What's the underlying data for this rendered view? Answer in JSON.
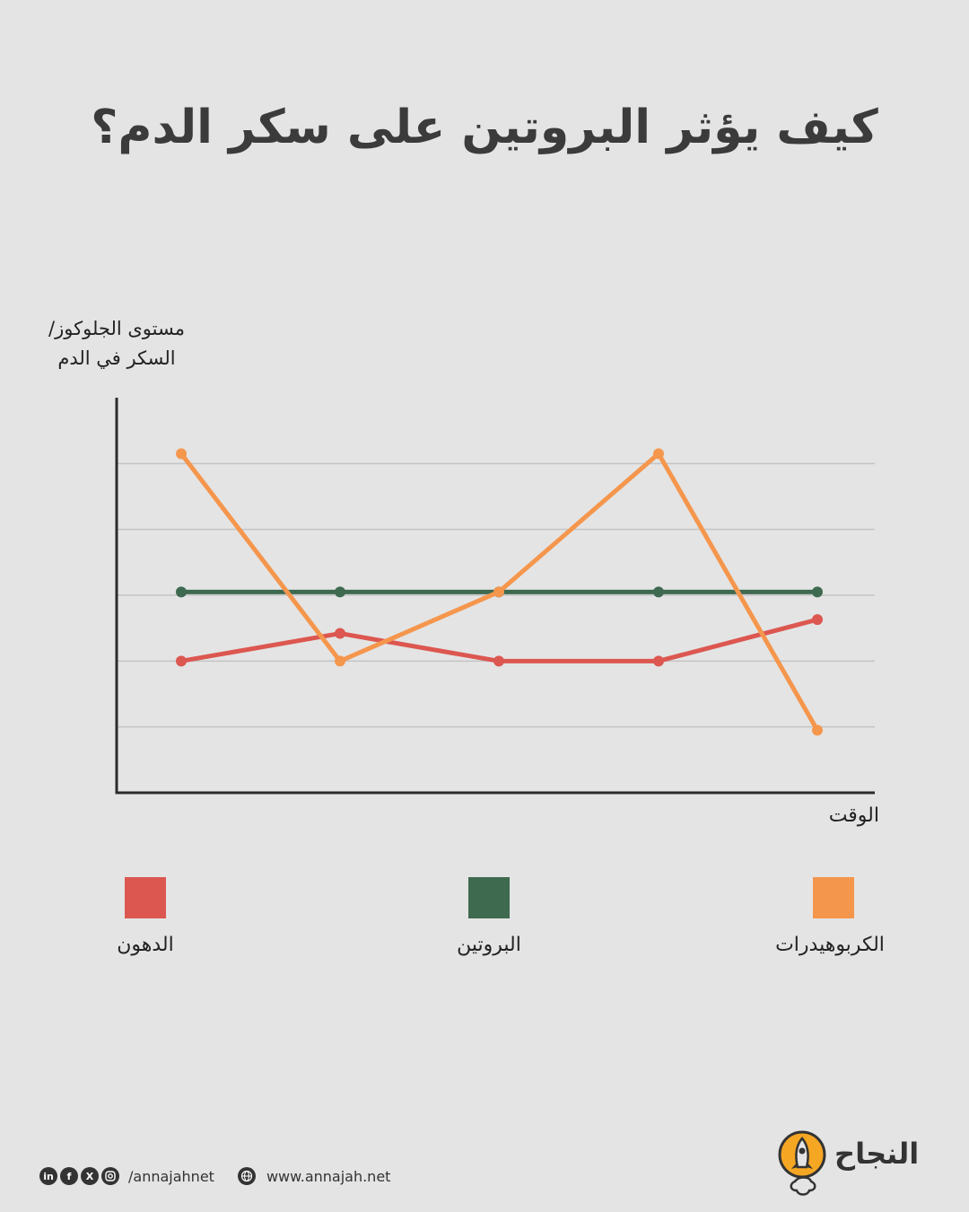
{
  "header": {
    "title": "كيف يؤثر البروتين على سكر الدم؟"
  },
  "chart_data": {
    "type": "line",
    "title": "كيف يؤثر البروتين على سكر الدم؟",
    "ylabel_lines": [
      "مستوى الجلوكوز/",
      "السكر في الدم"
    ],
    "xlabel": "الوقت",
    "ylim": [
      0,
      6
    ],
    "grid": true,
    "gridlines": [
      1,
      2,
      3,
      4,
      5
    ],
    "legend_position": "bottom",
    "x": [
      1,
      2,
      3,
      4,
      5
    ],
    "series": [
      {
        "name": "الكربوهيدرات",
        "color": "#f5964d",
        "values": [
          5.15,
          2.0,
          3.05,
          5.15,
          0.95
        ]
      },
      {
        "name": "البروتين",
        "color": "#3e6a50",
        "values": [
          3.05,
          3.05,
          3.05,
          3.05,
          3.05
        ]
      },
      {
        "name": "الدهون",
        "color": "#dc5750",
        "values": [
          2.0,
          2.42,
          2.0,
          2.0,
          2.63
        ]
      }
    ]
  },
  "legend": {
    "fats": {
      "label": "الدهون",
      "color": "#dc5750"
    },
    "protein": {
      "label": "البروتين",
      "color": "#3e6a50"
    },
    "carbs": {
      "label": "الكربوهيدرات",
      "color": "#f5964d"
    }
  },
  "footer": {
    "social_icons": [
      "linkedin-icon",
      "facebook-icon",
      "x-icon",
      "instagram-icon"
    ],
    "handle": "/annajahnet",
    "website_icon": "globe-icon",
    "website": "www.annajah.net"
  },
  "brand": {
    "name": "النجاح",
    "logo_icon": "rocket-icon",
    "accent": "#f5a623"
  }
}
